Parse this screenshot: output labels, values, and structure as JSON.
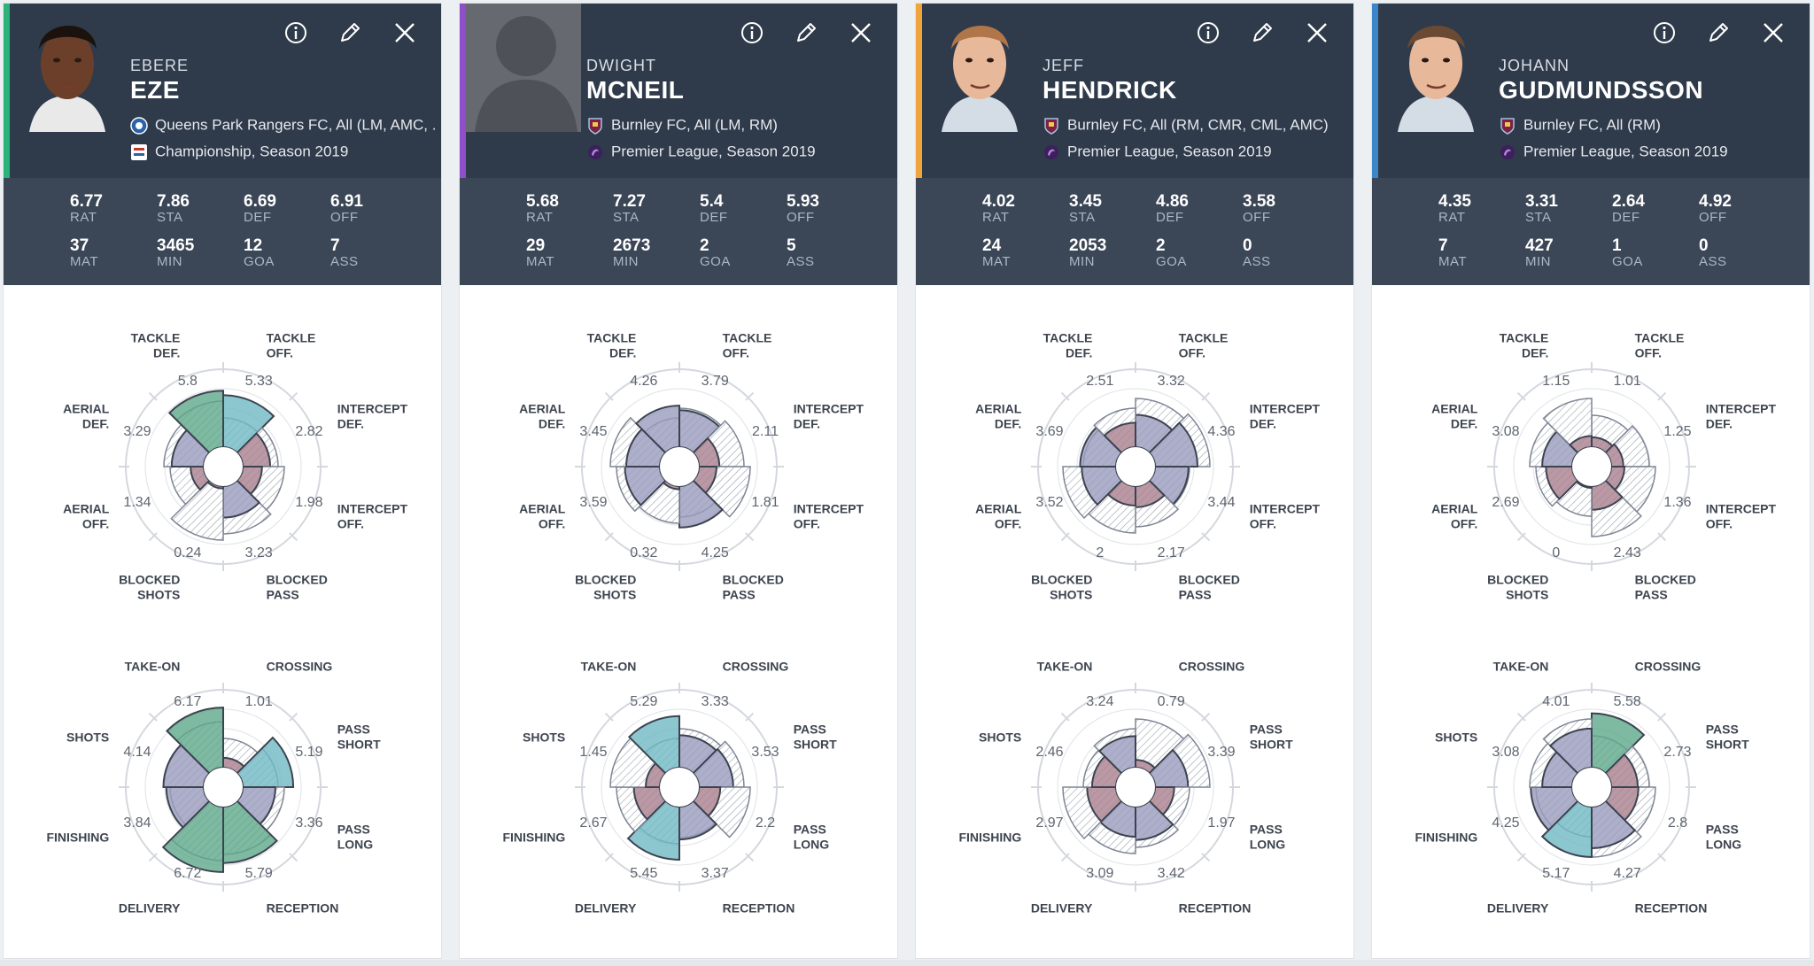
{
  "defensive_axes": [
    {
      "l1": "TACKLE",
      "l2": "OFF."
    },
    {
      "l1": "INTERCEPT",
      "l2": "DEF."
    },
    {
      "l1": "INTERCEPT",
      "l2": "OFF."
    },
    {
      "l1": "BLOCKED",
      "l2": "PASS"
    },
    {
      "l1": "BLOCKED",
      "l2": "SHOTS"
    },
    {
      "l1": "AERIAL",
      "l2": "OFF."
    },
    {
      "l1": "AERIAL",
      "l2": "DEF."
    },
    {
      "l1": "TACKLE",
      "l2": "DEF."
    }
  ],
  "offensive_axes": [
    {
      "l1": "CROSSING",
      "l2": ""
    },
    {
      "l1": "PASS",
      "l2": "SHORT"
    },
    {
      "l1": "PASS",
      "l2": "LONG"
    },
    {
      "l1": "RECEPTION",
      "l2": ""
    },
    {
      "l1": "DELIVERY",
      "l2": ""
    },
    {
      "l1": "FINISHING",
      "l2": ""
    },
    {
      "l1": "SHOTS",
      "l2": ""
    },
    {
      "l1": "TAKE-ON",
      "l2": ""
    }
  ],
  "stat_labels": [
    "RAT",
    "STA",
    "DEF",
    "OFF",
    "MAT",
    "MIN",
    "GOA",
    "ASS"
  ],
  "players": [
    {
      "first_name": "EBERE",
      "last_name": "EZE",
      "accent": "#2bb37a",
      "has_photo": true,
      "club_line": "Queens Park Rangers FC, All (LM, AMC, ...",
      "league_line": "Championship, Season 2019",
      "club_icon": "qpr-crest-icon",
      "league_icon": "championship-logo-icon",
      "stats": [
        "6.77",
        "7.86",
        "6.69",
        "6.91",
        "37",
        "3465",
        "12",
        "7"
      ],
      "defensive": {
        "values": [
          5.33,
          2.82,
          1.98,
          3.23,
          0.24,
          1.34,
          3.29,
          5.8
        ],
        "labels": [
          "5.33",
          "2.82",
          "1.98",
          "3.23",
          "0.24",
          "1.34",
          "3.29",
          "5.8"
        ]
      },
      "offensive": {
        "values": [
          1.01,
          5.19,
          3.36,
          5.79,
          6.72,
          3.84,
          4.14,
          6.17
        ],
        "labels": [
          "1.01",
          "5.19",
          "3.36",
          "5.79",
          "6.72",
          "3.84",
          "4.14",
          "6.17"
        ]
      }
    },
    {
      "first_name": "DWIGHT",
      "last_name": "MCNEIL",
      "accent": "#8e4fc9",
      "has_photo": false,
      "club_line": "Burnley FC, All (LM, RM)",
      "league_line": "Premier League, Season 2019",
      "club_icon": "burnley-crest-icon",
      "league_icon": "premier-league-logo-icon",
      "stats": [
        "5.68",
        "7.27",
        "5.4",
        "5.93",
        "29",
        "2673",
        "2",
        "5"
      ],
      "defensive": {
        "values": [
          3.79,
          2.11,
          1.81,
          4.25,
          0.32,
          3.59,
          3.45,
          4.26
        ],
        "labels": [
          "3.79",
          "2.11",
          "1.81",
          "4.25",
          "0.32",
          "3.59",
          "3.45",
          "4.26"
        ]
      },
      "offensive": {
        "values": [
          3.33,
          3.53,
          2.2,
          3.37,
          5.45,
          2.67,
          1.45,
          5.29
        ],
        "labels": [
          "3.33",
          "3.53",
          "2.2",
          "3.37",
          "5.45",
          "2.67",
          "1.45",
          "5.29"
        ]
      }
    },
    {
      "first_name": "JEFF",
      "last_name": "HENDRICK",
      "accent": "#f0a43a",
      "has_photo": true,
      "club_line": "Burnley FC, All (RM, CMR, CML, AMC)",
      "league_line": "Premier League, Season 2019",
      "club_icon": "burnley-crest-icon",
      "league_icon": "premier-league-logo-icon",
      "stats": [
        "4.02",
        "3.45",
        "4.86",
        "3.58",
        "24",
        "2053",
        "2",
        "0"
      ],
      "defensive": {
        "values": [
          3.32,
          4.36,
          3.44,
          2.17,
          2,
          3.52,
          3.69,
          2.51
        ],
        "labels": [
          "3.32",
          "4.36",
          "3.44",
          "2.17",
          "2",
          "3.52",
          "3.69",
          "2.51"
        ]
      },
      "offensive": {
        "values": [
          0.79,
          3.39,
          1.97,
          3.42,
          3.09,
          2.97,
          2.46,
          3.24
        ],
        "labels": [
          "0.79",
          "3.39",
          "1.97",
          "3.42",
          "3.09",
          "2.97",
          "2.46",
          "3.24"
        ]
      }
    },
    {
      "first_name": "JOHANN",
      "last_name": "GUDMUNDSSON",
      "accent": "#3a86c8",
      "has_photo": true,
      "club_line": "Burnley FC, All (RM)",
      "league_line": "Premier League, Season 2019",
      "club_icon": "burnley-crest-icon",
      "league_icon": "premier-league-logo-icon",
      "stats": [
        "4.35",
        "3.31",
        "2.64",
        "4.92",
        "7",
        "427",
        "1",
        "0"
      ],
      "defensive": {
        "values": [
          1.01,
          1.25,
          1.36,
          2.43,
          0,
          2.69,
          3.08,
          1.15
        ],
        "labels": [
          "1.01",
          "1.25",
          "1.36",
          "2.43",
          "0",
          "2.69",
          "3.08",
          "1.15"
        ]
      },
      "offensive": {
        "values": [
          5.58,
          2.73,
          2.8,
          4.27,
          5.17,
          4.25,
          3.08,
          4.01
        ],
        "labels": [
          "5.58",
          "2.73",
          "2.8",
          "4.27",
          "5.17",
          "4.25",
          "3.08",
          "4.01"
        ]
      }
    }
  ],
  "buttons": {
    "info": "info-icon",
    "edit": "pencil-icon",
    "close": "close-icon"
  },
  "colors": {
    "header": "#2f3a4a",
    "stats_bar": "#3b4656",
    "high": "#6fb9c4",
    "mid": "#9a9bbd",
    "low": "#a97f8f",
    "top": "#5ea88a"
  }
}
